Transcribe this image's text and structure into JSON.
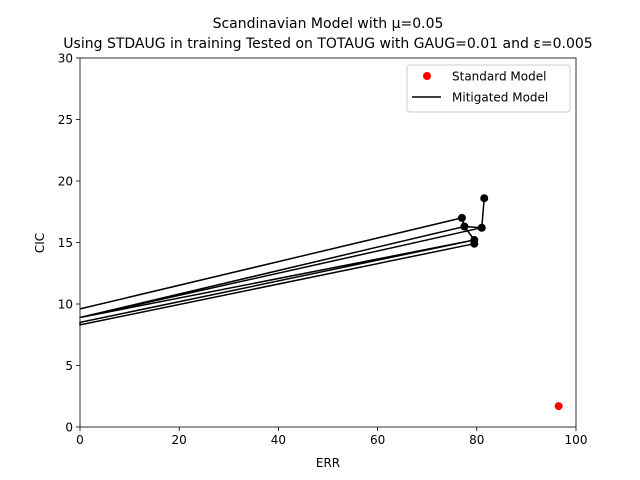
{
  "chart_data": {
    "type": "line",
    "title_line1": "Scandinavian Model with μ=0.05",
    "title_line2": "Using STDAUG in training Tested on TOTAUG with GAUG=0.01 and ε=0.005",
    "xlabel": "ERR",
    "ylabel": "CIC",
    "xlim": [
      0,
      100
    ],
    "ylim": [
      0,
      30
    ],
    "xticks": [
      0,
      20,
      40,
      60,
      80,
      100
    ],
    "yticks": [
      0,
      5,
      10,
      15,
      20,
      25,
      30
    ],
    "grid": false,
    "legend_position": "top-right",
    "series": [
      {
        "name": "Standard Model",
        "kind": "scatter",
        "color": "#ff0000",
        "points": [
          [
            96.5,
            1.7
          ]
        ]
      },
      {
        "name": "Mitigated Model",
        "kind": "line",
        "color": "#000000",
        "marker_color": "#000000",
        "points": [
          [
            0,
            9.6
          ],
          [
            77.0,
            17.0
          ],
          [
            77.5,
            16.3
          ],
          [
            79.5,
            15.2
          ],
          [
            0,
            8.5
          ],
          [
            0,
            8.3
          ],
          [
            79.5,
            14.9
          ],
          [
            79.5,
            15.2
          ],
          [
            0,
            8.9
          ],
          [
            81.0,
            16.2
          ],
          [
            81.5,
            18.6
          ],
          [
            81.0,
            16.2
          ],
          [
            77.5,
            16.3
          ],
          [
            0,
            8.9
          ]
        ],
        "marker_points": [
          [
            77.0,
            17.0
          ],
          [
            77.5,
            16.3
          ],
          [
            79.5,
            15.2
          ],
          [
            79.5,
            14.9
          ],
          [
            81.0,
            16.2
          ],
          [
            81.5,
            18.6
          ]
        ]
      }
    ]
  }
}
